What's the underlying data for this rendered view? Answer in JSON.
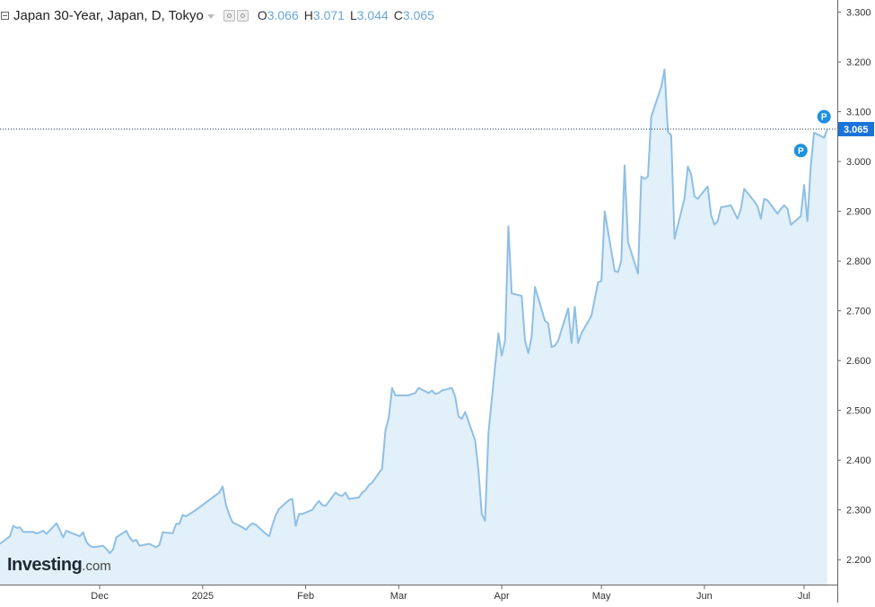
{
  "header": {
    "title": "Japan 30-Year, Japan, D, Tokyo",
    "open_label": "O",
    "open_value": "3.066",
    "high_label": "H",
    "high_value": "3.071",
    "low_label": "L",
    "low_value": "3.044",
    "close_label": "C",
    "close_value": "3.065"
  },
  "watermark": {
    "brand": "Investing",
    "domain": ".com"
  },
  "last_price_label": "3.065",
  "marker_letter": "P",
  "colors": {
    "line": "#8fbfe4",
    "area": "#e2f0fa",
    "axis": "#666666",
    "price_tag": "#1a73d9",
    "marker": "#1e90e0"
  },
  "chart_data": {
    "type": "area",
    "ylim": [
      2.15,
      3.31
    ],
    "yticks": [
      "2.200",
      "2.300",
      "2.400",
      "2.500",
      "2.600",
      "2.700",
      "2.800",
      "2.900",
      "3.000",
      "3.100",
      "3.200",
      "3.300"
    ],
    "xticks": [
      {
        "label": "Dec",
        "date": "2024-12-01"
      },
      {
        "label": "2025",
        "date": "2025-01-01"
      },
      {
        "label": "Feb",
        "date": "2025-02-01"
      },
      {
        "label": "Mar",
        "date": "2025-03-01"
      },
      {
        "label": "Apr",
        "date": "2025-04-01"
      },
      {
        "label": "May",
        "date": "2025-05-01"
      },
      {
        "label": "Jun",
        "date": "2025-06-01"
      },
      {
        "label": "Jul",
        "date": "2025-07-01"
      }
    ],
    "xlim": [
      "2024-11-01",
      "2025-07-11"
    ],
    "series": [
      {
        "points": [
          [
            "2024-11-01",
            2.232
          ],
          [
            "2024-11-04",
            2.247
          ],
          [
            "2024-11-05",
            2.268
          ],
          [
            "2024-11-06",
            2.264
          ],
          [
            "2024-11-07",
            2.265
          ],
          [
            "2024-11-08",
            2.256
          ],
          [
            "2024-11-11",
            2.256
          ],
          [
            "2024-11-12",
            2.253
          ],
          [
            "2024-11-13",
            2.255
          ],
          [
            "2024-11-14",
            2.258
          ],
          [
            "2024-11-15",
            2.252
          ],
          [
            "2024-11-18",
            2.273
          ],
          [
            "2024-11-19",
            2.26
          ],
          [
            "2024-11-20",
            2.245
          ],
          [
            "2024-11-21",
            2.258
          ],
          [
            "2024-11-22",
            2.255
          ],
          [
            "2024-11-25",
            2.247
          ],
          [
            "2024-11-26",
            2.255
          ],
          [
            "2024-11-27",
            2.236
          ],
          [
            "2024-11-28",
            2.228
          ],
          [
            "2024-11-29",
            2.225
          ],
          [
            "2024-12-02",
            2.228
          ],
          [
            "2024-12-03",
            2.222
          ],
          [
            "2024-12-04",
            2.213
          ],
          [
            "2024-12-05",
            2.22
          ],
          [
            "2024-12-06",
            2.245
          ],
          [
            "2024-12-09",
            2.258
          ],
          [
            "2024-12-10",
            2.245
          ],
          [
            "2024-12-11",
            2.237
          ],
          [
            "2024-12-12",
            2.24
          ],
          [
            "2024-12-13",
            2.228
          ],
          [
            "2024-12-16",
            2.232
          ],
          [
            "2024-12-17",
            2.228
          ],
          [
            "2024-12-18",
            2.225
          ],
          [
            "2024-12-19",
            2.23
          ],
          [
            "2024-12-20",
            2.255
          ],
          [
            "2024-12-23",
            2.253
          ],
          [
            "2024-12-24",
            2.272
          ],
          [
            "2024-12-25",
            2.272
          ],
          [
            "2024-12-26",
            2.29
          ],
          [
            "2024-12-27",
            2.287
          ],
          [
            "2024-12-30",
            2.3
          ],
          [
            "2025-01-06",
            2.335
          ],
          [
            "2025-01-07",
            2.347
          ],
          [
            "2025-01-08",
            2.31
          ],
          [
            "2025-01-09",
            2.29
          ],
          [
            "2025-01-10",
            2.275
          ],
          [
            "2025-01-13",
            2.265
          ],
          [
            "2025-01-14",
            2.26
          ],
          [
            "2025-01-15",
            2.268
          ],
          [
            "2025-01-16",
            2.273
          ],
          [
            "2025-01-17",
            2.27
          ],
          [
            "2025-01-20",
            2.252
          ],
          [
            "2025-01-21",
            2.247
          ],
          [
            "2025-01-22",
            2.27
          ],
          [
            "2025-01-23",
            2.29
          ],
          [
            "2025-01-24",
            2.302
          ],
          [
            "2025-01-27",
            2.32
          ],
          [
            "2025-01-28",
            2.322
          ],
          [
            "2025-01-29",
            2.268
          ],
          [
            "2025-01-30",
            2.292
          ],
          [
            "2025-01-31",
            2.292
          ],
          [
            "2025-02-03",
            2.3
          ],
          [
            "2025-02-04",
            2.31
          ],
          [
            "2025-02-05",
            2.318
          ],
          [
            "2025-02-06",
            2.31
          ],
          [
            "2025-02-07",
            2.308
          ],
          [
            "2025-02-10",
            2.335
          ],
          [
            "2025-02-11",
            2.33
          ],
          [
            "2025-02-12",
            2.328
          ],
          [
            "2025-02-13",
            2.335
          ],
          [
            "2025-02-14",
            2.322
          ],
          [
            "2025-02-17",
            2.325
          ],
          [
            "2025-02-18",
            2.335
          ],
          [
            "2025-02-19",
            2.34
          ],
          [
            "2025-02-20",
            2.35
          ],
          [
            "2025-02-21",
            2.355
          ],
          [
            "2025-02-24",
            2.383
          ],
          [
            "2025-02-25",
            2.46
          ],
          [
            "2025-02-26",
            2.485
          ],
          [
            "2025-02-27",
            2.545
          ],
          [
            "2025-02-28",
            2.53
          ],
          [
            "2025-03-03",
            2.53
          ],
          [
            "2025-03-04",
            2.53
          ],
          [
            "2025-03-05",
            2.533
          ],
          [
            "2025-03-06",
            2.535
          ],
          [
            "2025-03-07",
            2.545
          ],
          [
            "2025-03-10",
            2.535
          ],
          [
            "2025-03-11",
            2.54
          ],
          [
            "2025-03-12",
            2.533
          ],
          [
            "2025-03-13",
            2.535
          ],
          [
            "2025-03-14",
            2.54
          ],
          [
            "2025-03-17",
            2.545
          ],
          [
            "2025-03-18",
            2.528
          ],
          [
            "2025-03-19",
            2.488
          ],
          [
            "2025-03-20",
            2.483
          ],
          [
            "2025-03-21",
            2.497
          ],
          [
            "2025-03-24",
            2.44
          ],
          [
            "2025-03-25",
            2.38
          ],
          [
            "2025-03-26",
            2.292
          ],
          [
            "2025-03-27",
            2.278
          ],
          [
            "2025-03-28",
            2.455
          ],
          [
            "2025-03-31",
            2.655
          ],
          [
            "2025-04-01",
            2.61
          ],
          [
            "2025-04-02",
            2.64
          ],
          [
            "2025-04-03",
            2.87
          ],
          [
            "2025-04-04",
            2.735
          ],
          [
            "2025-04-07",
            2.73
          ],
          [
            "2025-04-08",
            2.64
          ],
          [
            "2025-04-09",
            2.615
          ],
          [
            "2025-04-10",
            2.648
          ],
          [
            "2025-04-11",
            2.748
          ],
          [
            "2025-04-14",
            2.68
          ],
          [
            "2025-04-15",
            2.675
          ],
          [
            "2025-04-16",
            2.627
          ],
          [
            "2025-04-17",
            2.63
          ],
          [
            "2025-04-18",
            2.64
          ],
          [
            "2025-04-21",
            2.705
          ],
          [
            "2025-04-22",
            2.635
          ],
          [
            "2025-04-23",
            2.708
          ],
          [
            "2025-04-24",
            2.635
          ],
          [
            "2025-04-25",
            2.655
          ],
          [
            "2025-04-28",
            2.69
          ],
          [
            "2025-04-30",
            2.757
          ],
          [
            "2025-05-01",
            2.76
          ],
          [
            "2025-05-02",
            2.9
          ],
          [
            "2025-05-05",
            2.78
          ],
          [
            "2025-05-06",
            2.778
          ],
          [
            "2025-05-07",
            2.8
          ],
          [
            "2025-05-08",
            2.992
          ],
          [
            "2025-05-09",
            2.838
          ],
          [
            "2025-05-12",
            2.775
          ],
          [
            "2025-05-13",
            2.97
          ],
          [
            "2025-05-14",
            2.965
          ],
          [
            "2025-05-15",
            2.97
          ],
          [
            "2025-05-16",
            3.09
          ],
          [
            "2025-05-19",
            3.15
          ],
          [
            "2025-05-20",
            3.185
          ],
          [
            "2025-05-21",
            3.06
          ],
          [
            "2025-05-22",
            3.052
          ],
          [
            "2025-05-23",
            2.845
          ],
          [
            "2025-05-26",
            2.925
          ],
          [
            "2025-05-27",
            2.99
          ],
          [
            "2025-05-28",
            2.975
          ],
          [
            "2025-05-29",
            2.93
          ],
          [
            "2025-05-30",
            2.925
          ],
          [
            "2025-06-02",
            2.95
          ],
          [
            "2025-06-03",
            2.893
          ],
          [
            "2025-06-04",
            2.873
          ],
          [
            "2025-06-05",
            2.88
          ],
          [
            "2025-06-06",
            2.908
          ],
          [
            "2025-06-09",
            2.912
          ],
          [
            "2025-06-10",
            2.898
          ],
          [
            "2025-06-11",
            2.885
          ],
          [
            "2025-06-12",
            2.905
          ],
          [
            "2025-06-13",
            2.945
          ],
          [
            "2025-06-16",
            2.92
          ],
          [
            "2025-06-17",
            2.91
          ],
          [
            "2025-06-18",
            2.885
          ],
          [
            "2025-06-19",
            2.925
          ],
          [
            "2025-06-20",
            2.922
          ],
          [
            "2025-06-23",
            2.895
          ],
          [
            "2025-06-24",
            2.905
          ],
          [
            "2025-06-25",
            2.912
          ],
          [
            "2025-06-26",
            2.905
          ],
          [
            "2025-06-27",
            2.873
          ],
          [
            "2025-06-30",
            2.89
          ],
          [
            "2025-07-01",
            2.953
          ],
          [
            "2025-07-02",
            2.88
          ],
          [
            "2025-07-03",
            2.99
          ],
          [
            "2025-07-04",
            3.058
          ],
          [
            "2025-07-07",
            3.048
          ],
          [
            "2025-07-08",
            3.065
          ]
        ]
      }
    ],
    "last_value": 3.065,
    "markers": [
      {
        "date": "2025-06-30",
        "value": 3.022
      },
      {
        "date": "2025-07-07",
        "value": 3.09
      }
    ],
    "grid": false
  }
}
